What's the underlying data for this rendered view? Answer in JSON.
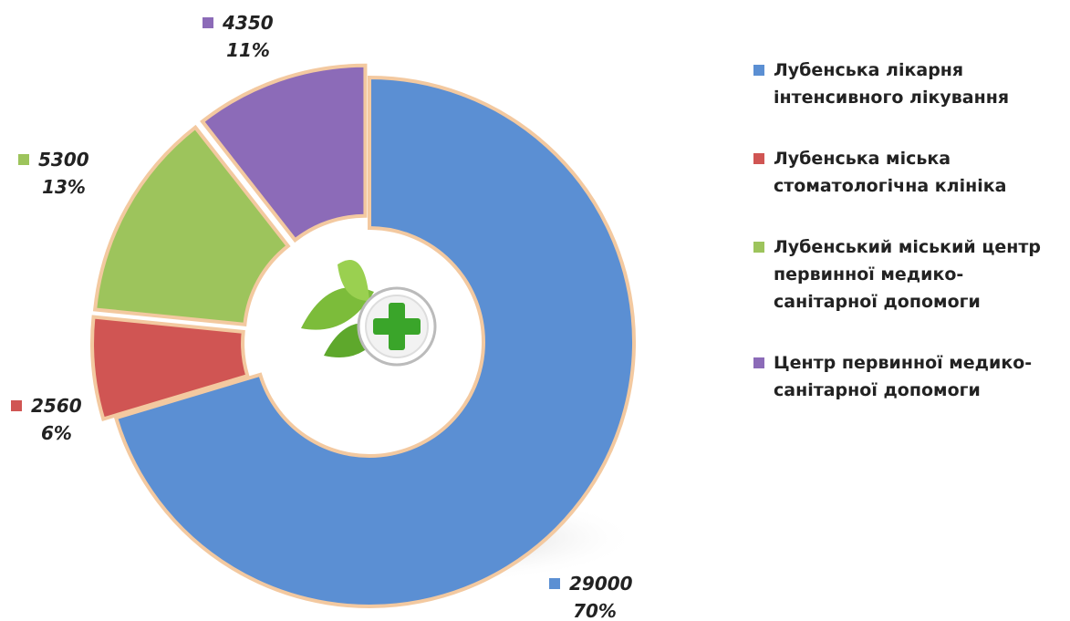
{
  "chart_data": {
    "type": "donut",
    "categories": [
      "Лубенська лікарня інтенсивного лікування",
      "Лубенська міська стоматологічна клініка",
      "Лубенський міський центр первинної медико-санітарної допомоги",
      "Центр первинної медико-санітарної допомоги"
    ],
    "values": [
      29000,
      2560,
      5300,
      4350
    ],
    "percent_labels": [
      "70%",
      "6%",
      "13%",
      "11%"
    ],
    "colors": [
      "#5b8fd3",
      "#d05553",
      "#9dc45c",
      "#8c6bb8"
    ],
    "legend": "right"
  }
}
